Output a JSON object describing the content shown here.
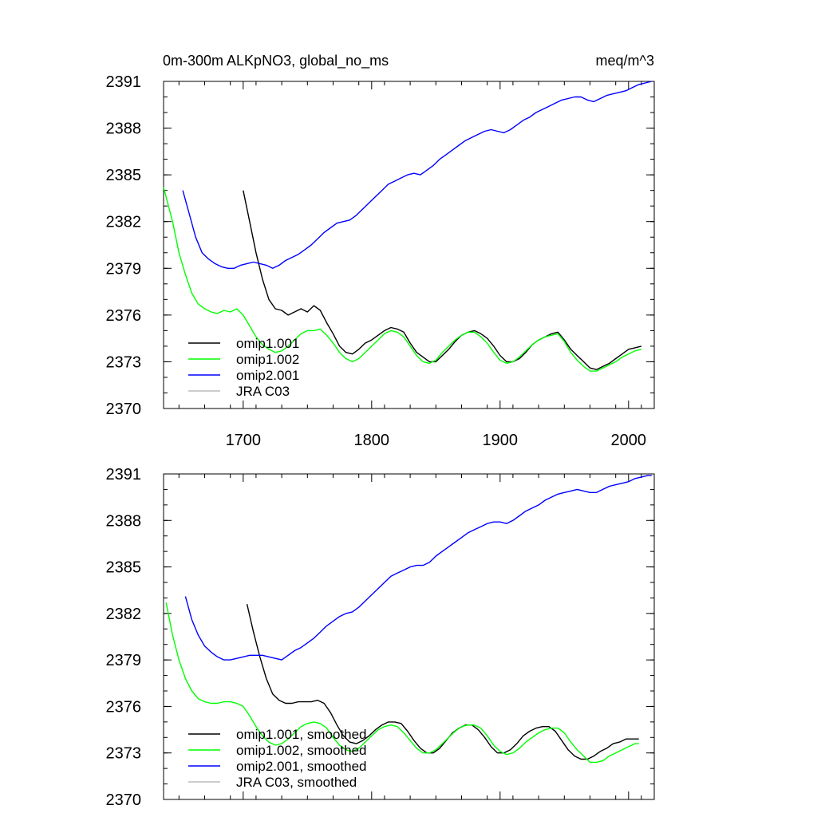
{
  "chart_data": [
    {
      "type": "line",
      "title": "0m-300m ALKpNO3, global_no_ms",
      "units_label": "meq/m^3",
      "xlim": [
        1638,
        2020
      ],
      "ylim": [
        2370,
        2391
      ],
      "x_ticks": [
        1700,
        1800,
        1900,
        2000
      ],
      "x_tick_labels": [
        "1700",
        "1800",
        "1900",
        "2000"
      ],
      "y_ticks": [
        2370,
        2373,
        2376,
        2379,
        2382,
        2385,
        2388,
        2391
      ],
      "y_tick_labels": [
        "2370",
        "2373",
        "2376",
        "2379",
        "2382",
        "2385",
        "2388",
        "2391"
      ],
      "legend_placement": "bottom-left",
      "grid": false,
      "series": [
        {
          "name": "omip1.001",
          "color": "#000000",
          "x": [
            1700,
            1705,
            1710,
            1715,
            1720,
            1725,
            1730,
            1735,
            1740,
            1745,
            1750,
            1755,
            1760,
            1765,
            1770,
            1775,
            1780,
            1785,
            1790,
            1795,
            1800,
            1805,
            1810,
            1815,
            1820,
            1825,
            1830,
            1835,
            1840,
            1845,
            1850,
            1855,
            1860,
            1865,
            1870,
            1875,
            1880,
            1885,
            1890,
            1895,
            1900,
            1905,
            1910,
            1915,
            1920,
            1925,
            1930,
            1935,
            1940,
            1945,
            1950,
            1955,
            1960,
            1965,
            1970,
            1975,
            1980,
            1985,
            1990,
            1995,
            2000,
            2005,
            2010
          ],
          "y": [
            2384.0,
            2382.0,
            2380.0,
            2378.3,
            2377.0,
            2376.4,
            2376.3,
            2376.0,
            2376.2,
            2376.4,
            2376.2,
            2376.6,
            2376.3,
            2375.5,
            2374.8,
            2374.0,
            2373.6,
            2373.5,
            2373.8,
            2374.2,
            2374.4,
            2374.7,
            2375.0,
            2375.2,
            2375.1,
            2374.9,
            2374.2,
            2373.6,
            2373.3,
            2373.0,
            2373.0,
            2373.4,
            2373.8,
            2374.3,
            2374.7,
            2374.9,
            2375.0,
            2374.8,
            2374.5,
            2374.0,
            2373.4,
            2373.0,
            2373.0,
            2373.2,
            2373.6,
            2374.1,
            2374.4,
            2374.6,
            2374.8,
            2374.9,
            2374.4,
            2373.8,
            2373.4,
            2373.0,
            2372.6,
            2372.5,
            2372.7,
            2372.9,
            2373.2,
            2373.5,
            2373.8,
            2373.9,
            2374.0
          ]
        },
        {
          "name": "omip1.002",
          "color": "#00ff00",
          "x": [
            1638,
            1645,
            1650,
            1655,
            1660,
            1665,
            1670,
            1675,
            1680,
            1685,
            1690,
            1695,
            1700,
            1705,
            1710,
            1715,
            1720,
            1725,
            1730,
            1735,
            1740,
            1745,
            1750,
            1755,
            1760,
            1765,
            1770,
            1775,
            1780,
            1785,
            1790,
            1795,
            1800,
            1805,
            1810,
            1815,
            1820,
            1825,
            1830,
            1835,
            1840,
            1845,
            1850,
            1855,
            1860,
            1865,
            1870,
            1875,
            1880,
            1885,
            1890,
            1895,
            1900,
            1905,
            1910,
            1915,
            1920,
            1925,
            1930,
            1935,
            1940,
            1945,
            1950,
            1955,
            1960,
            1965,
            1970,
            1975,
            1980,
            1985,
            1990,
            1995,
            2000,
            2005,
            2010
          ],
          "y": [
            2384.2,
            2382.0,
            2380.0,
            2378.6,
            2377.4,
            2376.7,
            2376.4,
            2376.2,
            2376.1,
            2376.3,
            2376.2,
            2376.4,
            2376.0,
            2375.3,
            2374.6,
            2374.1,
            2373.8,
            2373.6,
            2373.7,
            2374.0,
            2374.4,
            2374.8,
            2375.0,
            2375.0,
            2375.1,
            2374.7,
            2374.2,
            2373.6,
            2373.2,
            2373.0,
            2373.2,
            2373.6,
            2374.0,
            2374.4,
            2374.8,
            2375.0,
            2374.9,
            2374.6,
            2374.0,
            2373.4,
            2373.0,
            2372.9,
            2373.1,
            2373.6,
            2374.0,
            2374.4,
            2374.7,
            2374.9,
            2374.9,
            2374.6,
            2374.2,
            2373.6,
            2373.1,
            2372.9,
            2373.0,
            2373.3,
            2373.7,
            2374.1,
            2374.4,
            2374.6,
            2374.7,
            2374.8,
            2374.3,
            2373.6,
            2373.1,
            2372.7,
            2372.4,
            2372.4,
            2372.6,
            2372.8,
            2373.0,
            2373.3,
            2373.5,
            2373.7,
            2373.8
          ]
        },
        {
          "name": "omip2.001",
          "color": "#0000ff",
          "x": [
            1653,
            1658,
            1663,
            1668,
            1673,
            1678,
            1683,
            1688,
            1693,
            1698,
            1703,
            1708,
            1713,
            1718,
            1723,
            1728,
            1733,
            1738,
            1743,
            1748,
            1753,
            1758,
            1763,
            1768,
            1773,
            1778,
            1783,
            1788,
            1793,
            1798,
            1803,
            1808,
            1813,
            1818,
            1823,
            1828,
            1833,
            1838,
            1843,
            1848,
            1853,
            1858,
            1863,
            1868,
            1873,
            1878,
            1883,
            1888,
            1893,
            1898,
            1903,
            1908,
            1913,
            1918,
            1923,
            1928,
            1933,
            1938,
            1943,
            1948,
            1953,
            1958,
            1963,
            1968,
            1973,
            1978,
            1983,
            1988,
            1993,
            1998,
            2003,
            2008,
            2013,
            2018
          ],
          "y": [
            2384.0,
            2382.5,
            2381.0,
            2380.0,
            2379.6,
            2379.3,
            2379.1,
            2379.0,
            2379.0,
            2379.2,
            2379.3,
            2379.4,
            2379.3,
            2379.2,
            2379.0,
            2379.2,
            2379.5,
            2379.7,
            2379.9,
            2380.2,
            2380.5,
            2380.9,
            2381.3,
            2381.6,
            2381.9,
            2382.0,
            2382.1,
            2382.4,
            2382.8,
            2383.2,
            2383.6,
            2384.0,
            2384.4,
            2384.6,
            2384.8,
            2385.0,
            2385.1,
            2385.0,
            2385.3,
            2385.6,
            2386.0,
            2386.3,
            2386.6,
            2386.9,
            2387.2,
            2387.4,
            2387.6,
            2387.8,
            2387.9,
            2387.8,
            2387.7,
            2387.9,
            2388.2,
            2388.5,
            2388.7,
            2389.0,
            2389.2,
            2389.4,
            2389.6,
            2389.8,
            2389.9,
            2390.0,
            2390.0,
            2389.8,
            2389.7,
            2389.9,
            2390.1,
            2390.2,
            2390.3,
            2390.4,
            2390.6,
            2390.8,
            2390.9,
            2391.0
          ]
        },
        {
          "name": "JRA C03",
          "color": "#bbbbbb",
          "x": [],
          "y": []
        }
      ]
    },
    {
      "type": "line",
      "xlim": [
        1638,
        2020
      ],
      "ylim": [
        2370,
        2391
      ],
      "x_ticks": [
        1700,
        1800,
        1900,
        2000
      ],
      "y_ticks": [
        2370,
        2373,
        2376,
        2379,
        2382,
        2385,
        2388,
        2391
      ],
      "y_tick_labels": [
        "2370",
        "2373",
        "2376",
        "2379",
        "2382",
        "2385",
        "2388",
        "2391"
      ],
      "legend_placement": "bottom-left",
      "grid": false,
      "series": [
        {
          "name": "omip1.001, smoothed",
          "color": "#000000",
          "x": [
            1703,
            1708,
            1713,
            1718,
            1723,
            1728,
            1733,
            1738,
            1743,
            1748,
            1753,
            1758,
            1763,
            1768,
            1773,
            1778,
            1783,
            1788,
            1793,
            1798,
            1803,
            1808,
            1813,
            1818,
            1823,
            1828,
            1833,
            1838,
            1843,
            1848,
            1853,
            1858,
            1863,
            1868,
            1873,
            1878,
            1883,
            1888,
            1893,
            1898,
            1903,
            1908,
            1913,
            1918,
            1923,
            1928,
            1933,
            1938,
            1943,
            1948,
            1953,
            1958,
            1963,
            1968,
            1973,
            1978,
            1983,
            1988,
            1993,
            1998,
            2003,
            2008
          ],
          "y": [
            2382.6,
            2380.8,
            2379.2,
            2377.8,
            2376.8,
            2376.4,
            2376.2,
            2376.2,
            2376.3,
            2376.3,
            2376.3,
            2376.4,
            2376.2,
            2375.6,
            2374.8,
            2374.1,
            2373.7,
            2373.6,
            2373.8,
            2374.1,
            2374.5,
            2374.8,
            2375.0,
            2375.0,
            2374.9,
            2374.4,
            2373.8,
            2373.3,
            2373.0,
            2373.0,
            2373.3,
            2373.8,
            2374.3,
            2374.6,
            2374.8,
            2374.8,
            2374.5,
            2374.0,
            2373.4,
            2373.0,
            2373.0,
            2373.2,
            2373.6,
            2374.1,
            2374.4,
            2374.6,
            2374.7,
            2374.7,
            2374.4,
            2373.8,
            2373.2,
            2372.8,
            2372.6,
            2372.6,
            2372.8,
            2373.1,
            2373.3,
            2373.6,
            2373.7,
            2373.9,
            2373.9,
            2373.9
          ]
        },
        {
          "name": "omip1.002, smoothed",
          "color": "#00ff00",
          "x": [
            1640,
            1645,
            1650,
            1655,
            1660,
            1665,
            1670,
            1675,
            1680,
            1685,
            1690,
            1695,
            1700,
            1705,
            1710,
            1715,
            1720,
            1725,
            1730,
            1735,
            1740,
            1745,
            1750,
            1755,
            1760,
            1765,
            1770,
            1775,
            1780,
            1785,
            1790,
            1795,
            1800,
            1805,
            1810,
            1815,
            1820,
            1825,
            1830,
            1835,
            1840,
            1845,
            1850,
            1855,
            1860,
            1865,
            1870,
            1875,
            1880,
            1885,
            1890,
            1895,
            1900,
            1905,
            1910,
            1915,
            1920,
            1925,
            1930,
            1935,
            1940,
            1945,
            1950,
            1955,
            1960,
            1965,
            1970,
            1975,
            1980,
            1985,
            1990,
            1995,
            2000,
            2005,
            2008
          ],
          "y": [
            2382.7,
            2380.6,
            2379.0,
            2377.8,
            2377.0,
            2376.5,
            2376.3,
            2376.2,
            2376.2,
            2376.3,
            2376.3,
            2376.2,
            2376.0,
            2375.4,
            2374.7,
            2374.1,
            2373.7,
            2373.5,
            2373.6,
            2373.9,
            2374.3,
            2374.7,
            2374.9,
            2375.0,
            2374.9,
            2374.6,
            2374.0,
            2373.5,
            2373.2,
            2373.1,
            2373.3,
            2373.7,
            2374.1,
            2374.5,
            2374.7,
            2374.8,
            2374.7,
            2374.3,
            2373.8,
            2373.3,
            2373.0,
            2373.0,
            2373.2,
            2373.6,
            2374.0,
            2374.4,
            2374.7,
            2374.8,
            2374.8,
            2374.6,
            2374.1,
            2373.5,
            2373.1,
            2372.9,
            2373.0,
            2373.3,
            2373.7,
            2374.0,
            2374.3,
            2374.5,
            2374.6,
            2374.6,
            2374.3,
            2373.7,
            2373.2,
            2372.8,
            2372.4,
            2372.4,
            2372.5,
            2372.8,
            2373.0,
            2373.2,
            2373.4,
            2373.6,
            2373.6
          ]
        },
        {
          "name": "omip2.001, smoothed",
          "color": "#0000ff",
          "x": [
            1655,
            1660,
            1665,
            1670,
            1675,
            1680,
            1685,
            1690,
            1695,
            1700,
            1705,
            1710,
            1715,
            1720,
            1725,
            1730,
            1735,
            1740,
            1745,
            1750,
            1755,
            1760,
            1765,
            1770,
            1775,
            1780,
            1785,
            1790,
            1795,
            1800,
            1805,
            1810,
            1815,
            1820,
            1825,
            1830,
            1835,
            1840,
            1845,
            1850,
            1855,
            1860,
            1865,
            1870,
            1875,
            1880,
            1885,
            1890,
            1895,
            1900,
            1905,
            1910,
            1915,
            1920,
            1925,
            1930,
            1935,
            1940,
            1945,
            1950,
            1955,
            1960,
            1965,
            1970,
            1975,
            1980,
            1985,
            1990,
            1995,
            2000,
            2005,
            2010,
            2015,
            2018
          ],
          "y": [
            2383.1,
            2381.6,
            2380.6,
            2379.9,
            2379.5,
            2379.2,
            2379.0,
            2379.0,
            2379.1,
            2379.2,
            2379.3,
            2379.3,
            2379.3,
            2379.2,
            2379.1,
            2379.0,
            2379.3,
            2379.6,
            2379.8,
            2380.1,
            2380.4,
            2380.8,
            2381.2,
            2381.5,
            2381.8,
            2382.0,
            2382.1,
            2382.4,
            2382.8,
            2383.2,
            2383.6,
            2384.0,
            2384.4,
            2384.6,
            2384.8,
            2385.0,
            2385.1,
            2385.1,
            2385.3,
            2385.7,
            2386.0,
            2386.3,
            2386.6,
            2386.9,
            2387.2,
            2387.4,
            2387.6,
            2387.8,
            2387.9,
            2387.9,
            2387.8,
            2388.0,
            2388.3,
            2388.6,
            2388.8,
            2389.0,
            2389.3,
            2389.5,
            2389.7,
            2389.8,
            2389.9,
            2390.0,
            2389.9,
            2389.8,
            2389.8,
            2390.0,
            2390.2,
            2390.3,
            2390.4,
            2390.5,
            2390.7,
            2390.8,
            2390.9,
            2390.9
          ]
        },
        {
          "name": "JRA C03, smoothed",
          "color": "#bbbbbb",
          "x": [],
          "y": []
        }
      ]
    }
  ]
}
